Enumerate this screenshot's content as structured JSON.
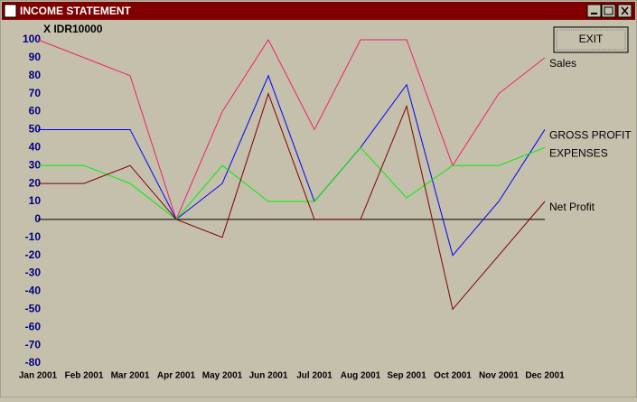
{
  "window": {
    "title": "INCOME STATEMENT",
    "exit_button": "EXIT"
  },
  "chart_data": {
    "type": "line",
    "ylabel": "X IDR10000",
    "categories": [
      "Jan 2001",
      "Feb 2001",
      "Mar 2001",
      "Apr 2001",
      "May 2001",
      "Jun 2001",
      "Jul 2001",
      "Aug 2001",
      "Sep 2001",
      "Oct 2001",
      "Nov 2001",
      "Dec 2001"
    ],
    "series": [
      {
        "name": "Sales",
        "color": "#f0206e",
        "values": [
          100,
          90,
          80,
          0,
          60,
          100,
          50,
          100,
          100,
          30,
          70,
          90
        ]
      },
      {
        "name": "GROSS PROFIT",
        "color": "#0000ff",
        "values": [
          50,
          50,
          50,
          0,
          20,
          80,
          10,
          40,
          75,
          -20,
          10,
          50
        ]
      },
      {
        "name": "EXPENSES",
        "color": "#00f000",
        "values": [
          30,
          30,
          20,
          0,
          30,
          10,
          10,
          40,
          12,
          30,
          30,
          40
        ]
      },
      {
        "name": "Net Profit",
        "color": "#800000",
        "values": [
          20,
          20,
          30,
          0,
          -10,
          70,
          0,
          0,
          63,
          -50,
          -20,
          10
        ]
      }
    ],
    "ylim": [
      -80,
      100
    ],
    "yticks": [
      100,
      90,
      80,
      70,
      60,
      50,
      40,
      30,
      20,
      10,
      0,
      -10,
      -20,
      -30,
      -40,
      -50,
      -60,
      -70,
      -80
    ],
    "grid": false
  }
}
